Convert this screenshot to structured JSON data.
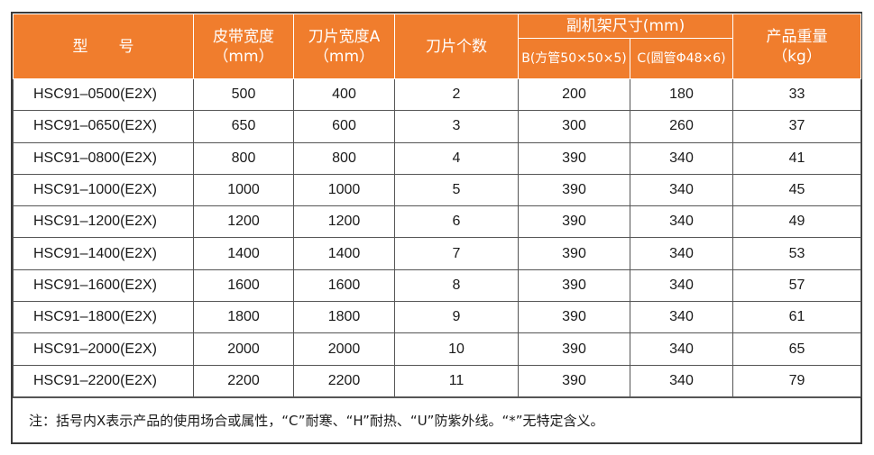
{
  "headers": {
    "model": "型　　号",
    "belt_width_line1": "皮带宽度",
    "belt_width_line2": "（mm）",
    "blade_width_line1": "刀片宽度A",
    "blade_width_line2": "（mm）",
    "blade_count": "刀片个数",
    "frame_size": "副机架尺寸(mm)",
    "frame_b": "B(方管50×50×5)",
    "frame_c": "C(圆管Φ48×6)",
    "weight_line1": "产品重量",
    "weight_line2": "（kg）"
  },
  "rows": [
    [
      "HSC91–0500(E2X)",
      "500",
      "400",
      "2",
      "200",
      "180",
      "33"
    ],
    [
      "HSC91–0650(E2X)",
      "650",
      "600",
      "3",
      "300",
      "260",
      "37"
    ],
    [
      "HSC91–0800(E2X)",
      "800",
      "800",
      "4",
      "390",
      "340",
      "41"
    ],
    [
      "HSC91–1000(E2X)",
      "1000",
      "1000",
      "5",
      "390",
      "340",
      "45"
    ],
    [
      "HSC91–1200(E2X)",
      "1200",
      "1200",
      "6",
      "390",
      "340",
      "49"
    ],
    [
      "HSC91–1400(E2X)",
      "1400",
      "1400",
      "7",
      "390",
      "340",
      "53"
    ],
    [
      "HSC91–1600(E2X)",
      "1600",
      "1600",
      "8",
      "390",
      "340",
      "57"
    ],
    [
      "HSC91–1800(E2X)",
      "1800",
      "1800",
      "9",
      "390",
      "340",
      "61"
    ],
    [
      "HSC91–2000(E2X)",
      "2000",
      "2000",
      "10",
      "390",
      "340",
      "65"
    ],
    [
      "HSC91–2200(E2X)",
      "2200",
      "2200",
      "11",
      "390",
      "340",
      "79"
    ]
  ],
  "note": "注：括号内X表示产品的使用场合或属性，“C”耐寒、“H”耐热、“U”防紫外线。“*”无特定含义。",
  "colors": {
    "header_bg": "#f07d2d",
    "header_text": "#ffffff",
    "border": "#555555"
  }
}
